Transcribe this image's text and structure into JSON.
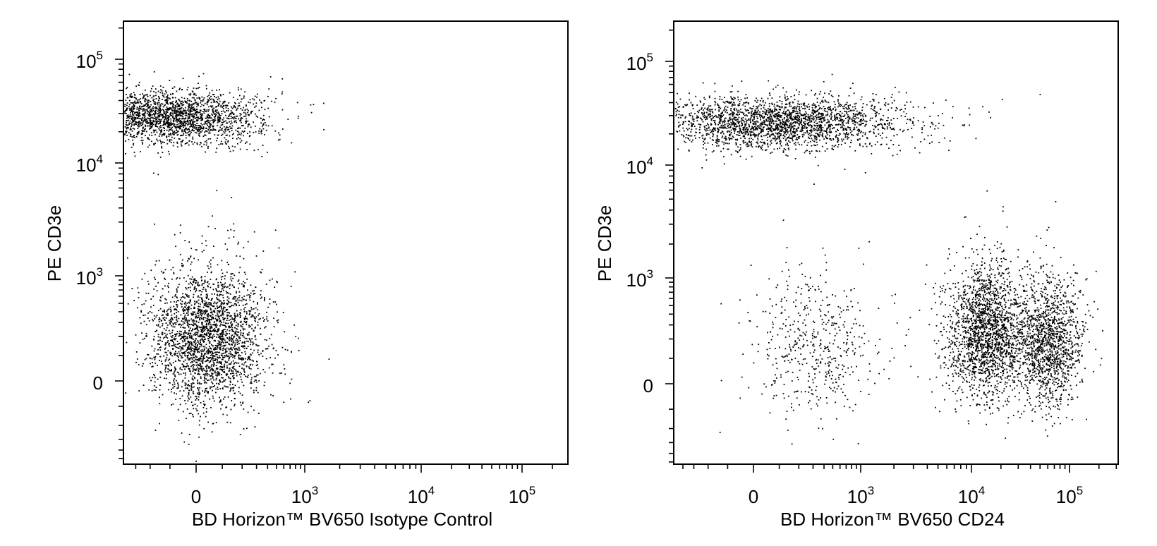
{
  "chart_data": [
    {
      "type": "scatter",
      "xlabel": "BD Horizon™ BV650 Isotype Control",
      "ylabel": "PE CD3e",
      "x_scale": "biexponential",
      "y_scale": "biexponential",
      "x_tick_labels": [
        "0",
        "10^3",
        "10^4",
        "10^5"
      ],
      "y_tick_labels": [
        "0",
        "10^3",
        "10^4",
        "10^5"
      ],
      "point_color": "#000000",
      "clusters": [
        {
          "name": "",
          "x_center": -100,
          "y_center": 28000,
          "x_spread": 170,
          "y_spread": 10000,
          "count": 2200
        },
        {
          "name": "",
          "x_center": 40,
          "y_center": 200,
          "x_spread": 130,
          "y_spread": 320,
          "count": 2600
        }
      ]
    },
    {
      "type": "scatter",
      "xlabel": "BD Horizon™ BV650 CD24",
      "ylabel": "PE CD3e",
      "x_scale": "biexponential",
      "y_scale": "biexponential",
      "x_tick_labels": [
        "0",
        "10^3",
        "10^4",
        "10^5"
      ],
      "y_tick_labels": [
        "0",
        "10^3",
        "10^4",
        "10^5"
      ],
      "point_color": "#000000",
      "clusters": [
        {
          "name": "",
          "x_center": 80,
          "y_center": 26000,
          "x_spread": 500,
          "y_spread": 9000,
          "count": 2400
        },
        {
          "name": "",
          "x_center": 300,
          "y_center": 180,
          "x_spread": 400,
          "y_spread": 300,
          "count": 500
        },
        {
          "name": "",
          "x_center": 14000,
          "y_center": 250,
          "x_spread": 8000,
          "y_spread": 350,
          "count": 2000
        },
        {
          "name": "",
          "x_center": 60000,
          "y_center": 200,
          "x_spread": 30000,
          "y_spread": 300,
          "count": 1400
        }
      ]
    }
  ]
}
